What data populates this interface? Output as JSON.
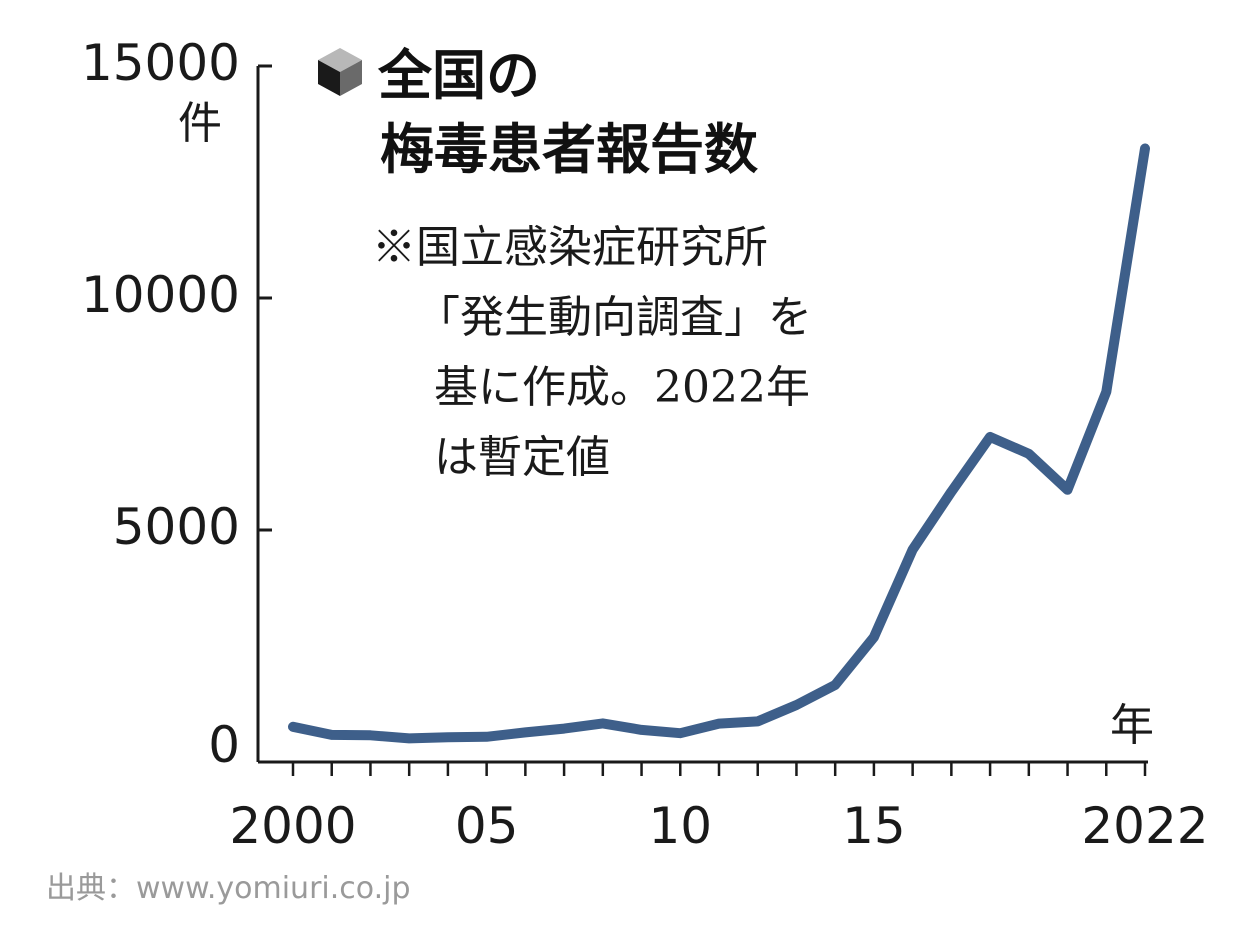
{
  "chart_data": {
    "type": "line",
    "title_lines": [
      "全国の",
      "梅毒患者報告数"
    ],
    "note_lines": [
      "※国立感染症研究所",
      "「発生動向調査」を",
      "基に作成。2022年",
      "は暫定値"
    ],
    "y_unit": "件",
    "x_unit": "年",
    "ylim": [
      0,
      15000
    ],
    "y_ticks": [
      {
        "value": 0,
        "label": "0"
      },
      {
        "value": 5000,
        "label": "5000"
      },
      {
        "value": 10000,
        "label": "10000"
      },
      {
        "value": 15000,
        "label": "15000"
      }
    ],
    "xlim": [
      2000,
      2022
    ],
    "x_tick_labels": [
      {
        "value": 2000,
        "label": "2000"
      },
      {
        "value": 2005,
        "label": "05"
      },
      {
        "value": 2010,
        "label": "10"
      },
      {
        "value": 2015,
        "label": "15"
      },
      {
        "value": 2022,
        "label": "2022"
      }
    ],
    "grid": false,
    "legend": "none",
    "series": [
      {
        "color": "#3e5f8a",
        "x": [
          2000,
          2001,
          2002,
          2003,
          2004,
          2005,
          2006,
          2007,
          2008,
          2009,
          2010,
          2011,
          2012,
          2013,
          2014,
          2015,
          2016,
          2017,
          2018,
          2019,
          2020,
          2021,
          2022
        ],
        "values": [
          759,
          585,
          575,
          509,
          533,
          543,
          637,
          719,
          831,
          691,
          621,
          827,
          875,
          1228,
          1661,
          2690,
          4575,
          5826,
          7007,
          6642,
          5867,
          7978,
          13221
        ]
      }
    ]
  },
  "source": "出典：www.yomiuri.co.jp",
  "colors": {
    "line": "#3e5f8a",
    "axis": "#1a1a1a",
    "source": "#9a9a9a"
  },
  "icon": "cube-icon"
}
